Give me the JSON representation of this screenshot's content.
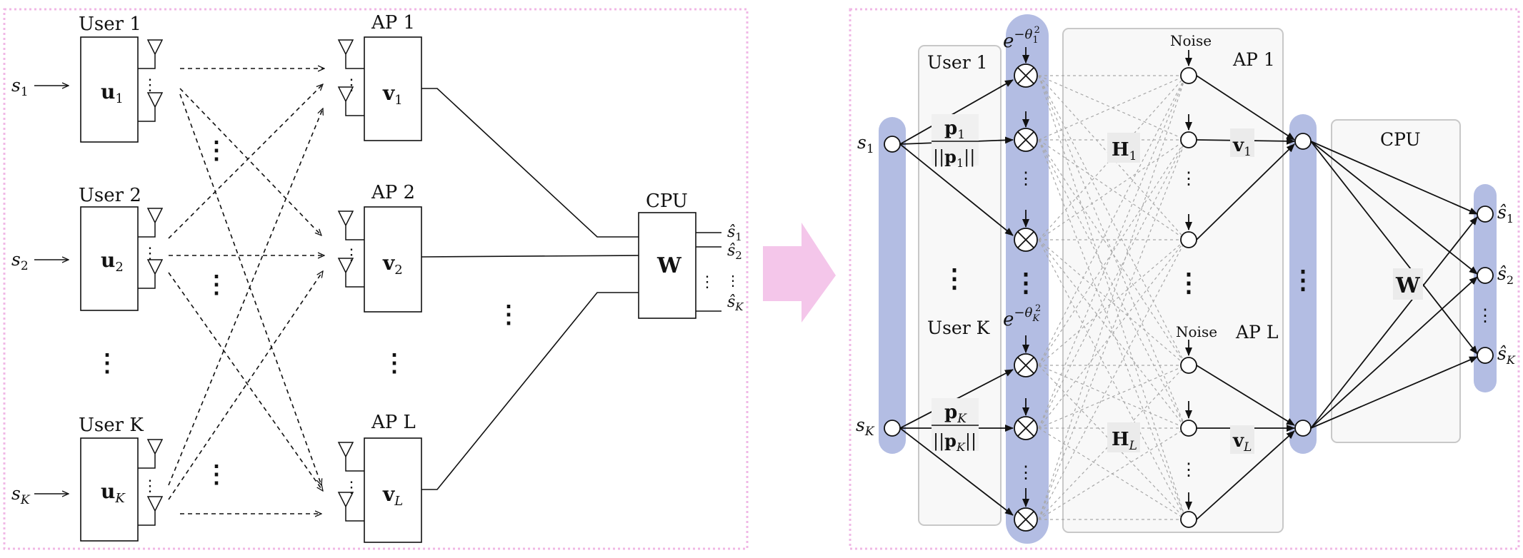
{
  "left_panel": {
    "users": [
      {
        "label": "User 1",
        "input": "s",
        "input_sub": "1",
        "precoder": "u",
        "precoder_sub": "1"
      },
      {
        "label": "User 2",
        "input": "s",
        "input_sub": "2",
        "precoder": "u",
        "precoder_sub": "2"
      },
      {
        "label": "User K",
        "input": "s",
        "input_sub": "K",
        "precoder": "u",
        "precoder_sub": "K"
      }
    ],
    "aps": [
      {
        "label": "AP 1",
        "combiner": "v",
        "combiner_sub": "1"
      },
      {
        "label": "AP 2",
        "combiner": "v",
        "combiner_sub": "2"
      },
      {
        "label": "AP L",
        "combiner": "v",
        "combiner_sub": "L"
      }
    ],
    "cpu": {
      "label": "CPU",
      "matrix": "W"
    },
    "outputs": [
      {
        "symbol": "ŝ",
        "sub": "1"
      },
      {
        "symbol": "ŝ",
        "sub": "2"
      },
      {
        "symbol": "ŝ",
        "sub": "K"
      }
    ],
    "ellipsis": "⋮"
  },
  "right_panel": {
    "inputs": [
      {
        "symbol": "s",
        "sub": "1"
      },
      {
        "symbol": "s",
        "sub": "K"
      }
    ],
    "user_labels": [
      "User 1",
      "User K"
    ],
    "power_norm": [
      {
        "num": "p",
        "num_sub": "1",
        "den_open": "||",
        "den": "p",
        "den_sub": "1",
        "den_close": "||"
      },
      {
        "num": "p",
        "num_sub": "K",
        "den_open": "||",
        "den": "p",
        "den_sub": "K",
        "den_close": "||"
      }
    ],
    "phase_terms": [
      {
        "base": "e",
        "exp": "−θ",
        "exp_sub": "1",
        "exp_sup": "2"
      },
      {
        "base": "e",
        "exp": "−θ",
        "exp_sub": "K",
        "exp_sup": "2"
      }
    ],
    "channels": [
      {
        "symbol": "H",
        "sub": "1"
      },
      {
        "symbol": "H",
        "sub": "L"
      }
    ],
    "noise_labels": [
      "Noise",
      "Noise"
    ],
    "ap_labels": [
      "AP 1",
      "AP L"
    ],
    "combiners": [
      {
        "symbol": "v",
        "sub": "1"
      },
      {
        "symbol": "v",
        "sub": "L"
      }
    ],
    "cpu": {
      "label": "CPU",
      "matrix": "W"
    },
    "outputs": [
      {
        "symbol": "ŝ",
        "sub": "1"
      },
      {
        "symbol": "ŝ",
        "sub": "2"
      },
      {
        "symbol": "ŝ",
        "sub": "K"
      }
    ]
  },
  "colors": {
    "panel_border": "#f0b8e6",
    "arrow_fill": "#f4c6ea",
    "layer_bar": "#b3bde3",
    "group_box": "#f8f8f8",
    "group_border": "#c8c8c8",
    "channel_line": "#a8a8a8"
  }
}
